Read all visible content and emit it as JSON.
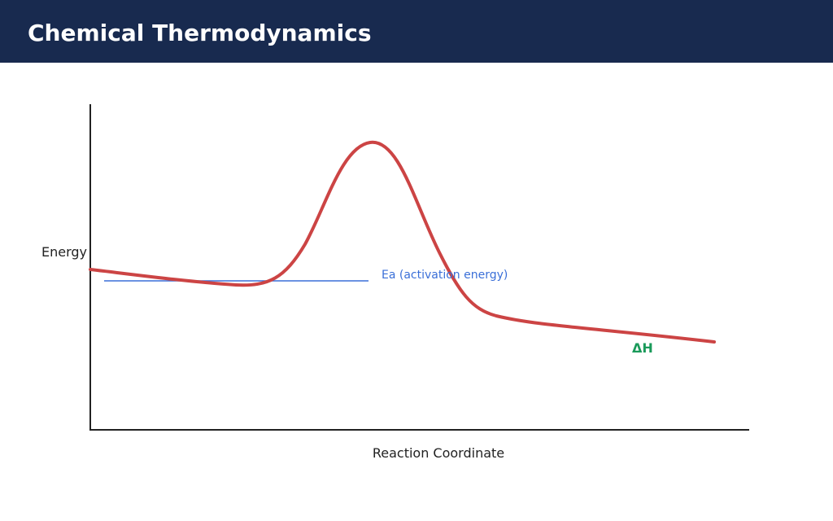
{
  "header": {
    "title": "Chemical Thermodynamics"
  },
  "diagram": {
    "y_axis_label": "Energy",
    "x_axis_label": "Reaction Coordinate",
    "activation_energy_label": "Ea (activation energy)",
    "enthalpy_label": "ΔH"
  },
  "colors": {
    "header_background": "#182a4f",
    "curve": "#cc4444",
    "activation_energy": "#3a6fd8",
    "enthalpy": "#1a9a5a",
    "axis": "#222222"
  }
}
